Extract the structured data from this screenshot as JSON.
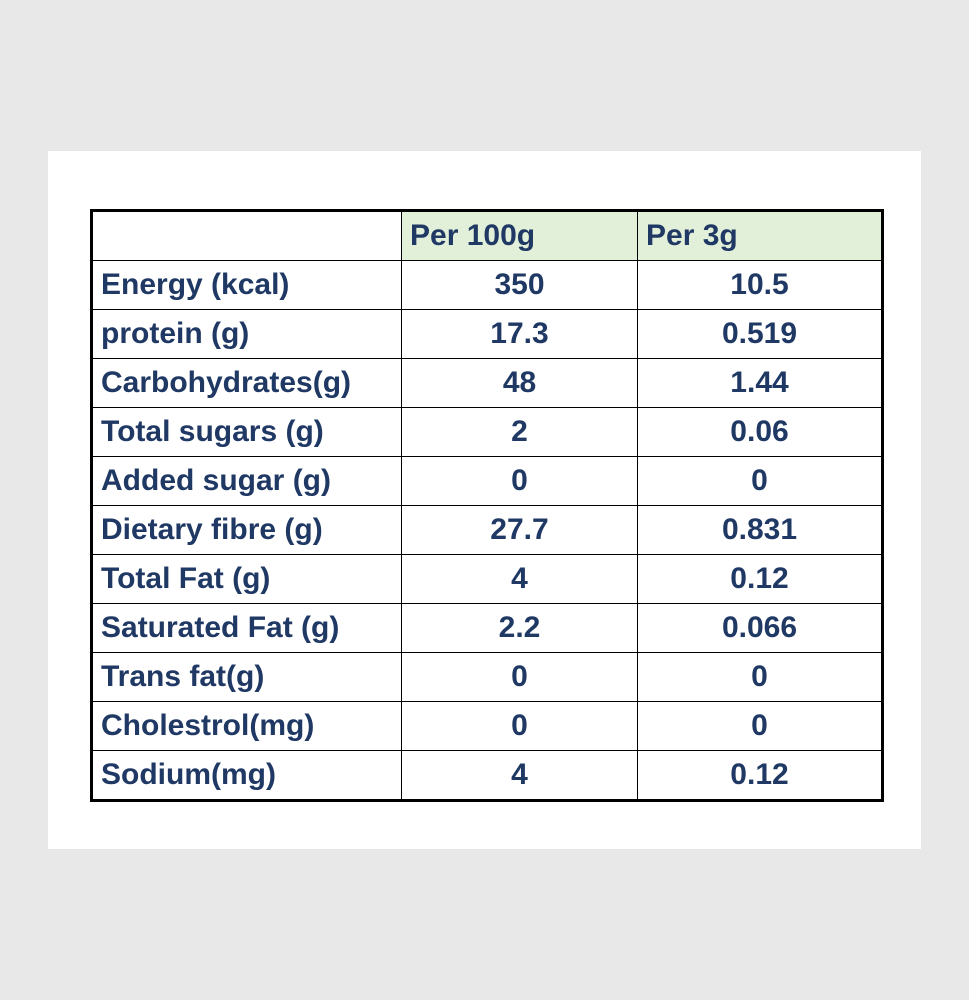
{
  "table": {
    "headers": [
      "",
      "Per 100g",
      "Per 3g"
    ],
    "rows": [
      {
        "label": "Energy (kcal)",
        "per_100g": "350",
        "per_3g": "10.5"
      },
      {
        "label": "protein (g)",
        "per_100g": "17.3",
        "per_3g": "0.519"
      },
      {
        "label": "Carbohydrates(g)",
        "per_100g": "48",
        "per_3g": "1.44"
      },
      {
        "label": "Total sugars (g)",
        "per_100g": "2",
        "per_3g": "0.06"
      },
      {
        "label": "Added sugar (g)",
        "per_100g": "0",
        "per_3g": "0"
      },
      {
        "label": "Dietary fibre (g)",
        "per_100g": "27.7",
        "per_3g": "0.831"
      },
      {
        "label": "Total Fat (g)",
        "per_100g": "4",
        "per_3g": "0.12"
      },
      {
        "label": "Saturated Fat (g)",
        "per_100g": "2.2",
        "per_3g": "0.066"
      },
      {
        "label": "Trans fat(g)",
        "per_100g": "0",
        "per_3g": "0"
      },
      {
        "label": "Cholestrol(mg)",
        "per_100g": "0",
        "per_3g": "0"
      },
      {
        "label": "Sodium(mg)",
        "per_100g": "4",
        "per_3g": "0.12"
      }
    ]
  },
  "colors": {
    "background": "#e8e8e8",
    "card": "#ffffff",
    "text": "#1f3864",
    "header_fill": "#e2efd9",
    "border": "#000000"
  }
}
